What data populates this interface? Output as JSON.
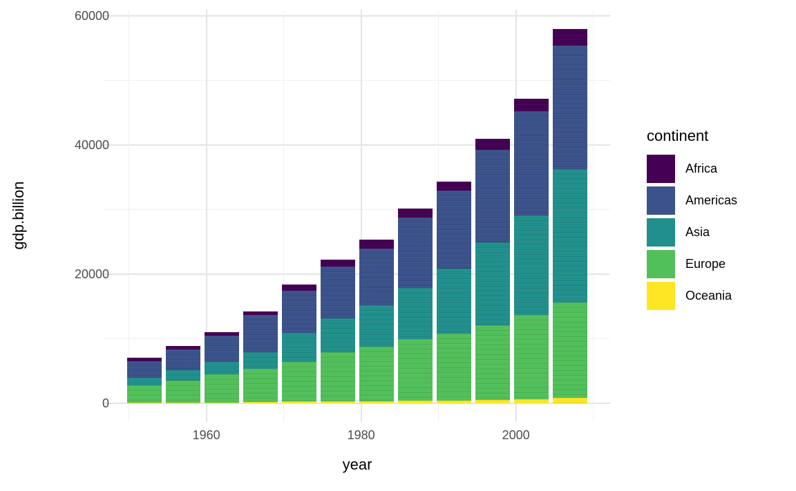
{
  "legend": {
    "title": "continent",
    "position": "right"
  },
  "chart_data": {
    "type": "bar",
    "variant": "stacked",
    "title": "",
    "xlabel": "year",
    "ylabel": "gdp.billion",
    "categories": [
      1952,
      1957,
      1962,
      1967,
      1972,
      1977,
      1982,
      1987,
      1992,
      1997,
      2002,
      2007
    ],
    "series": [
      {
        "name": "Africa",
        "color": "#440154",
        "values": [
          540,
          540,
          570,
          600,
          960,
          1130,
          1330,
          1330,
          1390,
          1740,
          1890,
          2570
        ]
      },
      {
        "name": "Americas",
        "color": "#3B528B",
        "values": [
          2600,
          3210,
          4030,
          5710,
          6530,
          7960,
          8770,
          10910,
          12120,
          14260,
          16220,
          19180
        ]
      },
      {
        "name": "Asia",
        "color": "#21908C",
        "values": [
          1140,
          1670,
          1960,
          2600,
          4460,
          5240,
          6420,
          7910,
          10090,
          12830,
          15330,
          20680
        ]
      },
      {
        "name": "Europe",
        "color": "#52C05A",
        "values": [
          2670,
          3360,
          4300,
          5140,
          6150,
          7650,
          8440,
          9550,
          10300,
          11560,
          13050,
          14770
        ]
      },
      {
        "name": "Oceania",
        "color": "#FDE725",
        "values": [
          110,
          130,
          160,
          210,
          270,
          290,
          360,
          430,
          470,
          560,
          670,
          810
        ]
      }
    ],
    "stack_order_bottom_to_top": [
      "Oceania",
      "Europe",
      "Asia",
      "Americas",
      "Africa"
    ],
    "totals": [
      7060,
      8910,
      11020,
      14260,
      18370,
      22270,
      25320,
      30130,
      34370,
      40950,
      47160,
      58010
    ],
    "x_axis": {
      "ticks": [
        {
          "value": 1960,
          "label": "1960"
        },
        {
          "value": 1980,
          "label": "1980"
        },
        {
          "value": 2000,
          "label": "2000"
        }
      ],
      "minor_gridlines": [
        1950,
        1970,
        1990,
        2010
      ],
      "range": [
        1946.8,
        2012.2
      ]
    },
    "y_axis": {
      "ticks": [
        {
          "value": 0,
          "label": "0"
        },
        {
          "value": 20000,
          "label": "20000"
        },
        {
          "value": 40000,
          "label": "40000"
        },
        {
          "value": 60000,
          "label": "60000"
        }
      ],
      "minor_gridlines": [
        10000,
        30000,
        50000
      ],
      "range": [
        -2900,
        60910
      ]
    },
    "grid": "on",
    "legend_position": "right",
    "background": "#ffffff",
    "gridline_color": "#ebebeb",
    "tick_label_color": "#4d4d4d"
  }
}
